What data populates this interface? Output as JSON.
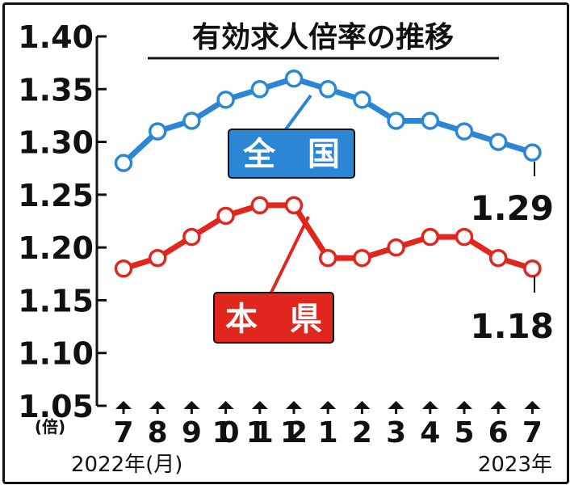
{
  "chart_data": {
    "type": "line",
    "title": "有効求人倍率の推移",
    "ylabel": "(倍)",
    "ylim": [
      1.05,
      1.4
    ],
    "yticks": [
      "1.40",
      "1.35",
      "1.30",
      "1.25",
      "1.20",
      "1.15",
      "1.10",
      "1.05"
    ],
    "yticks_values": [
      1.4,
      1.35,
      1.3,
      1.25,
      1.2,
      1.15,
      1.1,
      1.05
    ],
    "categories": [
      "7",
      "8",
      "9",
      "10",
      "11",
      "12",
      "1",
      "2",
      "3",
      "4",
      "5",
      "6",
      "7"
    ],
    "year_start_label": "2022年(月)",
    "year_end_label": "2023年",
    "grid": false,
    "series": [
      {
        "name": "全　国",
        "color": "#2b86d6",
        "values": [
          1.28,
          1.31,
          1.32,
          1.34,
          1.35,
          1.36,
          1.35,
          1.34,
          1.32,
          1.32,
          1.31,
          1.3,
          1.29
        ],
        "end_label": "1.29"
      },
      {
        "name": "本　県",
        "color": "#e0261d",
        "values": [
          1.18,
          1.19,
          1.21,
          1.23,
          1.24,
          1.24,
          1.19,
          1.19,
          1.2,
          1.21,
          1.21,
          1.19,
          1.18
        ],
        "end_label": "1.18"
      }
    ]
  }
}
